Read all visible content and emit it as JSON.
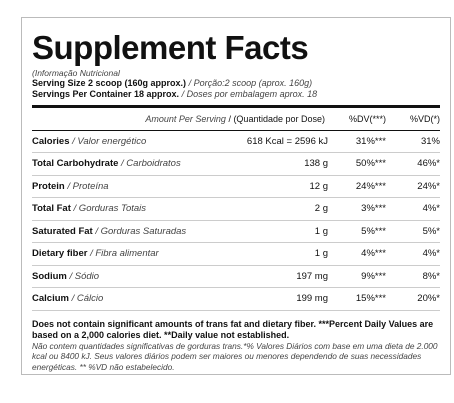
{
  "title": "Supplement Facts",
  "subtitle": "(Informação Nutricional",
  "serving_size": {
    "en": "Serving Size 2 scoop (160g approx.)",
    "pt": "/ Porção:2 scoop (aprox. 160g)"
  },
  "servings": {
    "en": "Servings Per Container 18 approx.",
    "pt": "/ Doses por embalagem aprox. 18"
  },
  "header": {
    "amount": "Amount Per Serving",
    "amount_pt": "/ (Quantidade por Dose)",
    "dv": "%DV(***)",
    "vd": "%VD(*)"
  },
  "rows": [
    {
      "name": "Calories",
      "pt": "/ Valor energético",
      "amount": "618 Kcal = 2596 kJ",
      "dv": "31%***",
      "vd": "31%"
    },
    {
      "name": "Total Carbohydrate",
      "pt": "/ Carboidratos",
      "amount": "138 g",
      "dv": "50%***",
      "vd": "46%*"
    },
    {
      "name": "Protein",
      "pt": "/ Proteína",
      "amount": "12 g",
      "dv": "24%***",
      "vd": "24%*"
    },
    {
      "name": "Total Fat",
      "pt": "/ Gorduras Totais",
      "amount": "2 g",
      "dv": "3%***",
      "vd": "4%*"
    },
    {
      "name": "Saturated Fat",
      "pt": "/ Gorduras Saturadas",
      "amount": "1 g",
      "dv": "5%***",
      "vd": "5%*"
    },
    {
      "name": "Dietary fiber",
      "pt": "/ Fibra alimentar",
      "amount": "1 g",
      "dv": "4%***",
      "vd": "4%*"
    },
    {
      "name": "Sodium",
      "pt": "/ Sódio",
      "amount": "197 mg",
      "dv": "9%***",
      "vd": "8%*"
    },
    {
      "name": "Calcium",
      "pt": "/ Cálcio",
      "amount": "199 mg",
      "dv": "15%***",
      "vd": "20%*"
    }
  ],
  "footer": {
    "en": "Does not contain significant amounts of trans fat and dietary fiber. ***Percent Daily Values are based on a 2,000 calories diet. **Daily value not established.",
    "pt": "Não contem quantidades significativas de gorduras trans.*% Valores Diários com base em uma dieta de 2.000 kcal ou 8400 kJ. Seus valores diários podem ser maiores ou menores dependendo de suas necessidades energéticas. ** %VD não estabelecido."
  }
}
